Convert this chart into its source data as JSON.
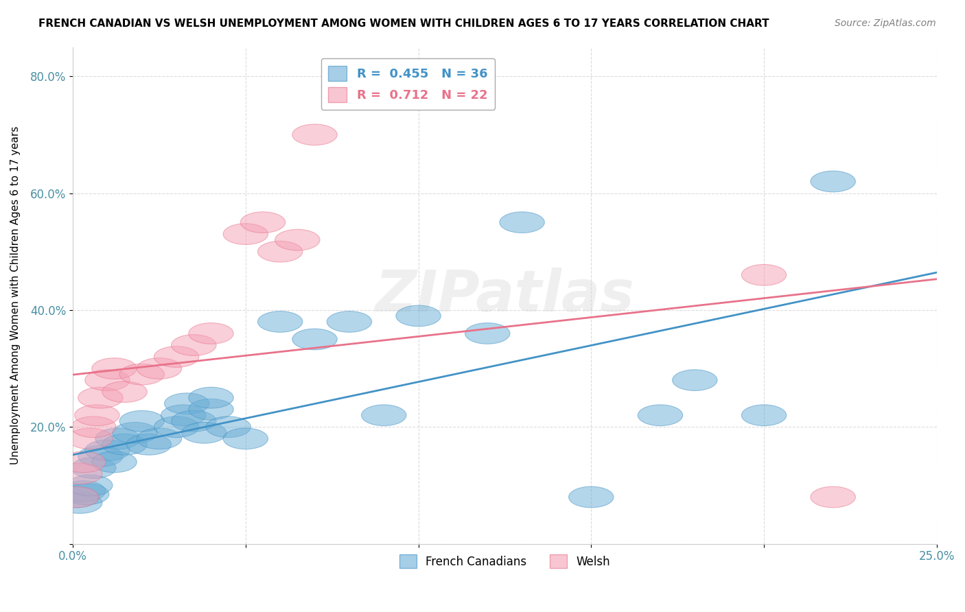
{
  "title": "FRENCH CANADIAN VS WELSH UNEMPLOYMENT AMONG WOMEN WITH CHILDREN AGES 6 TO 17 YEARS CORRELATION CHART",
  "source": "Source: ZipAtlas.com",
  "ylabel": "Unemployment Among Women with Children Ages 6 to 17 years",
  "xlim": [
    0.0,
    0.25
  ],
  "ylim": [
    0.0,
    0.85
  ],
  "xticks": [
    0.0,
    0.05,
    0.1,
    0.15,
    0.2,
    0.25
  ],
  "xticklabels": [
    "0.0%",
    "",
    "",
    "",
    "",
    "25.0%"
  ],
  "yticks": [
    0.0,
    0.2,
    0.4,
    0.6,
    0.8
  ],
  "yticklabels": [
    "",
    "20.0%",
    "40.0%",
    "60.0%",
    "80.0%"
  ],
  "french_R": 0.455,
  "french_N": 36,
  "welsh_R": 0.712,
  "welsh_N": 22,
  "french_color": "#6baed6",
  "welsh_color": "#f4a0b5",
  "french_line_color": "#4292c6",
  "welsh_line_color": "#e8728a",
  "watermark": "ZIPatlas",
  "french_x": [
    0.001,
    0.002,
    0.003,
    0.004,
    0.005,
    0.006,
    0.008,
    0.01,
    0.012,
    0.013,
    0.015,
    0.018,
    0.02,
    0.022,
    0.025,
    0.03,
    0.032,
    0.033,
    0.035,
    0.038,
    0.04,
    0.04,
    0.045,
    0.05,
    0.06,
    0.07,
    0.08,
    0.09,
    0.1,
    0.12,
    0.13,
    0.15,
    0.17,
    0.18,
    0.2,
    0.22
  ],
  "french_y": [
    0.08,
    0.07,
    0.09,
    0.085,
    0.1,
    0.13,
    0.15,
    0.16,
    0.14,
    0.18,
    0.17,
    0.19,
    0.21,
    0.17,
    0.18,
    0.2,
    0.22,
    0.24,
    0.21,
    0.19,
    0.23,
    0.25,
    0.2,
    0.18,
    0.38,
    0.35,
    0.38,
    0.22,
    0.39,
    0.36,
    0.55,
    0.08,
    0.22,
    0.28,
    0.22,
    0.62
  ],
  "welsh_x": [
    0.001,
    0.002,
    0.003,
    0.005,
    0.006,
    0.007,
    0.008,
    0.01,
    0.012,
    0.015,
    0.02,
    0.025,
    0.03,
    0.035,
    0.04,
    0.05,
    0.055,
    0.06,
    0.065,
    0.07,
    0.2,
    0.22
  ],
  "welsh_y": [
    0.08,
    0.12,
    0.14,
    0.18,
    0.2,
    0.22,
    0.25,
    0.28,
    0.3,
    0.26,
    0.29,
    0.3,
    0.32,
    0.34,
    0.36,
    0.53,
    0.55,
    0.5,
    0.52,
    0.7,
    0.46,
    0.08
  ]
}
